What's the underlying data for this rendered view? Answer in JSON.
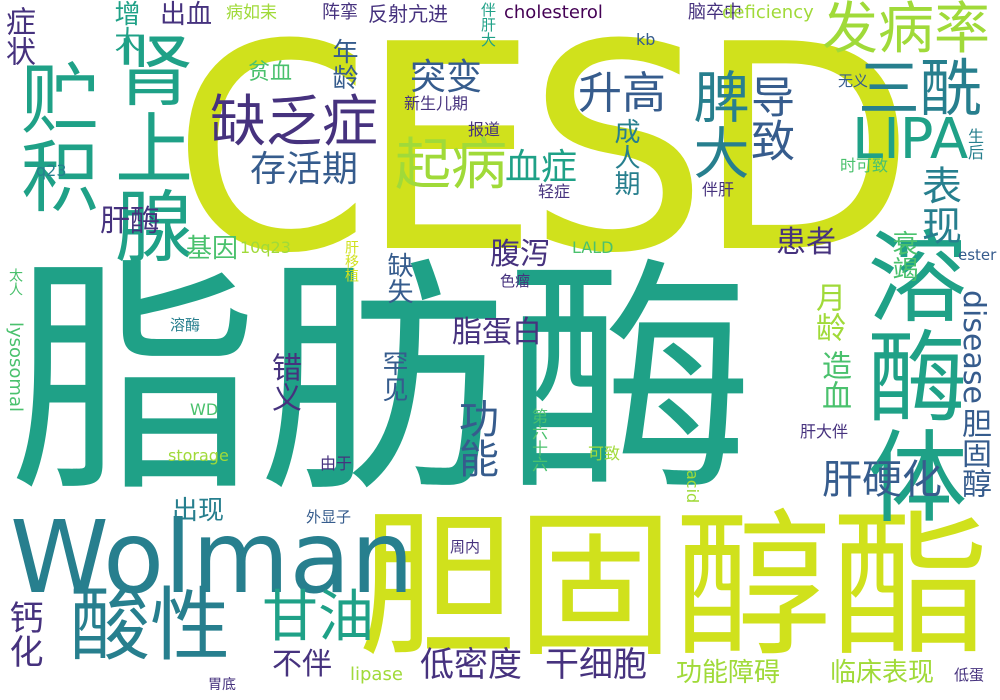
{
  "palette": {
    "lime": "#d0e11c",
    "yellow_green": "#a0da39",
    "green": "#4ac16d",
    "teal_green": "#1fa187",
    "teal": "#277f8e",
    "blue": "#365c8d",
    "indigo": "#46327e",
    "purple": "#440154"
  },
  "words": [
    {
      "text": "CESD",
      "color": "#d0e11c"
    },
    {
      "text": "脂肪酶",
      "color": "#1fa187"
    },
    {
      "text": "胆固醇酯",
      "color": "#d0e11c"
    },
    {
      "text": "Wolman",
      "color": "#277f8e"
    },
    {
      "text": "溶酶体",
      "color": "#1fa187"
    },
    {
      "text": "贮积",
      "color": "#1fa187"
    },
    {
      "text": "肾上腺",
      "color": "#1fa187"
    },
    {
      "text": "酸性",
      "color": "#277f8e"
    },
    {
      "text": "发病率",
      "color": "#a0da39"
    },
    {
      "text": "三酰",
      "color": "#277f8e"
    },
    {
      "text": "LIPA",
      "color": "#1fa187"
    },
    {
      "text": "缺乏症",
      "color": "#46327e"
    },
    {
      "text": "甘油",
      "color": "#1fa187"
    },
    {
      "text": "起病",
      "color": "#a0da39"
    },
    {
      "text": "脾大",
      "color": "#277f8e"
    },
    {
      "text": "导致",
      "color": "#365c8d"
    },
    {
      "text": "突变",
      "color": "#365c8d"
    },
    {
      "text": "升高",
      "color": "#365c8d"
    },
    {
      "text": "存活期",
      "color": "#365c8d"
    },
    {
      "text": "血症",
      "color": "#1fa187"
    },
    {
      "text": "表现",
      "color": "#277f8e"
    },
    {
      "text": "肝硬化",
      "color": "#365c8d"
    },
    {
      "text": "功能",
      "color": "#365c8d"
    },
    {
      "text": "症状",
      "color": "#46327e"
    },
    {
      "text": "增大",
      "color": "#1fa187"
    },
    {
      "text": "出血",
      "color": "#46327e"
    },
    {
      "text": "年龄",
      "color": "#365c8d"
    },
    {
      "text": "贫血",
      "color": "#4ac16d"
    },
    {
      "text": "肝酶",
      "color": "#46327e"
    },
    {
      "text": "基因",
      "color": "#4ac16d"
    },
    {
      "text": "衰竭",
      "color": "#4ac16d"
    },
    {
      "text": "成人期",
      "color": "#277f8e"
    },
    {
      "text": "腹泻",
      "color": "#46327e"
    },
    {
      "text": "患者",
      "color": "#46327e"
    },
    {
      "text": "月龄",
      "color": "#a0da39"
    },
    {
      "text": "脂蛋白",
      "color": "#46327e"
    },
    {
      "text": "缺失",
      "color": "#365c8d"
    },
    {
      "text": "胆固醇",
      "color": "#365c8d"
    },
    {
      "text": "disease",
      "color": "#365c8d"
    },
    {
      "text": "造血",
      "color": "#4ac16d"
    },
    {
      "text": "错义",
      "color": "#46327e"
    },
    {
      "text": "罕见",
      "color": "#365c8d"
    },
    {
      "text": "干细胞",
      "color": "#46327e"
    },
    {
      "text": "低密度",
      "color": "#46327e"
    },
    {
      "text": "不伴",
      "color": "#46327e"
    },
    {
      "text": "钙化",
      "color": "#46327e"
    },
    {
      "text": "出现",
      "color": "#277f8e"
    },
    {
      "text": "功能障碍",
      "color": "#a0da39"
    },
    {
      "text": "临床表现",
      "color": "#a0da39"
    },
    {
      "text": "病如耒",
      "color": "#a0da39"
    },
    {
      "text": "阵挛",
      "color": "#46327e"
    },
    {
      "text": "反射亢进",
      "color": "#46327e"
    },
    {
      "text": "伴肝大",
      "color": "#1fa187"
    },
    {
      "text": "cholesterol",
      "color": "#440154"
    },
    {
      "text": "脑卒中",
      "color": "#46327e"
    },
    {
      "text": "deficiency",
      "color": "#a0da39"
    },
    {
      "text": "kb",
      "color": "#365c8d"
    },
    {
      "text": "无义",
      "color": "#365c8d"
    },
    {
      "text": "生后",
      "color": "#277f8e"
    },
    {
      "text": "新生儿期",
      "color": "#46327e"
    },
    {
      "text": "报道",
      "color": "#46327e"
    },
    {
      "text": "q23",
      "color": "#277f8e"
    },
    {
      "text": "轻症",
      "color": "#46327e"
    },
    {
      "text": "时可致",
      "color": "#4ac16d"
    },
    {
      "text": "伴肝",
      "color": "#46327e"
    },
    {
      "text": "10q23",
      "color": "#a0da39"
    },
    {
      "text": "LALD",
      "color": "#4ac16d"
    },
    {
      "text": "肝移植",
      "color": "#d0e11c"
    },
    {
      "text": "色瘤",
      "color": "#46327e"
    },
    {
      "text": "ester",
      "color": "#365c8d"
    },
    {
      "text": "太人",
      "color": "#4ac16d"
    },
    {
      "text": "lysosomal",
      "color": "#4ac16d"
    },
    {
      "text": "溶酶",
      "color": "#277f8e"
    },
    {
      "text": "WD",
      "color": "#4ac16d"
    },
    {
      "text": "第六十六",
      "color": "#4ac16d"
    },
    {
      "text": "肝大伴",
      "color": "#46327e"
    },
    {
      "text": "storage",
      "color": "#a0da39"
    },
    {
      "text": "可致",
      "color": "#a0da39"
    },
    {
      "text": "由于",
      "color": "#46327e"
    },
    {
      "text": "acid",
      "color": "#a0da39"
    },
    {
      "text": "外显子",
      "color": "#365c8d"
    },
    {
      "text": "周内",
      "color": "#46327e"
    },
    {
      "text": "lipase",
      "color": "#a0da39"
    },
    {
      "text": "胃底",
      "color": "#46327e"
    },
    {
      "text": "低蛋",
      "color": "#46327e"
    }
  ]
}
